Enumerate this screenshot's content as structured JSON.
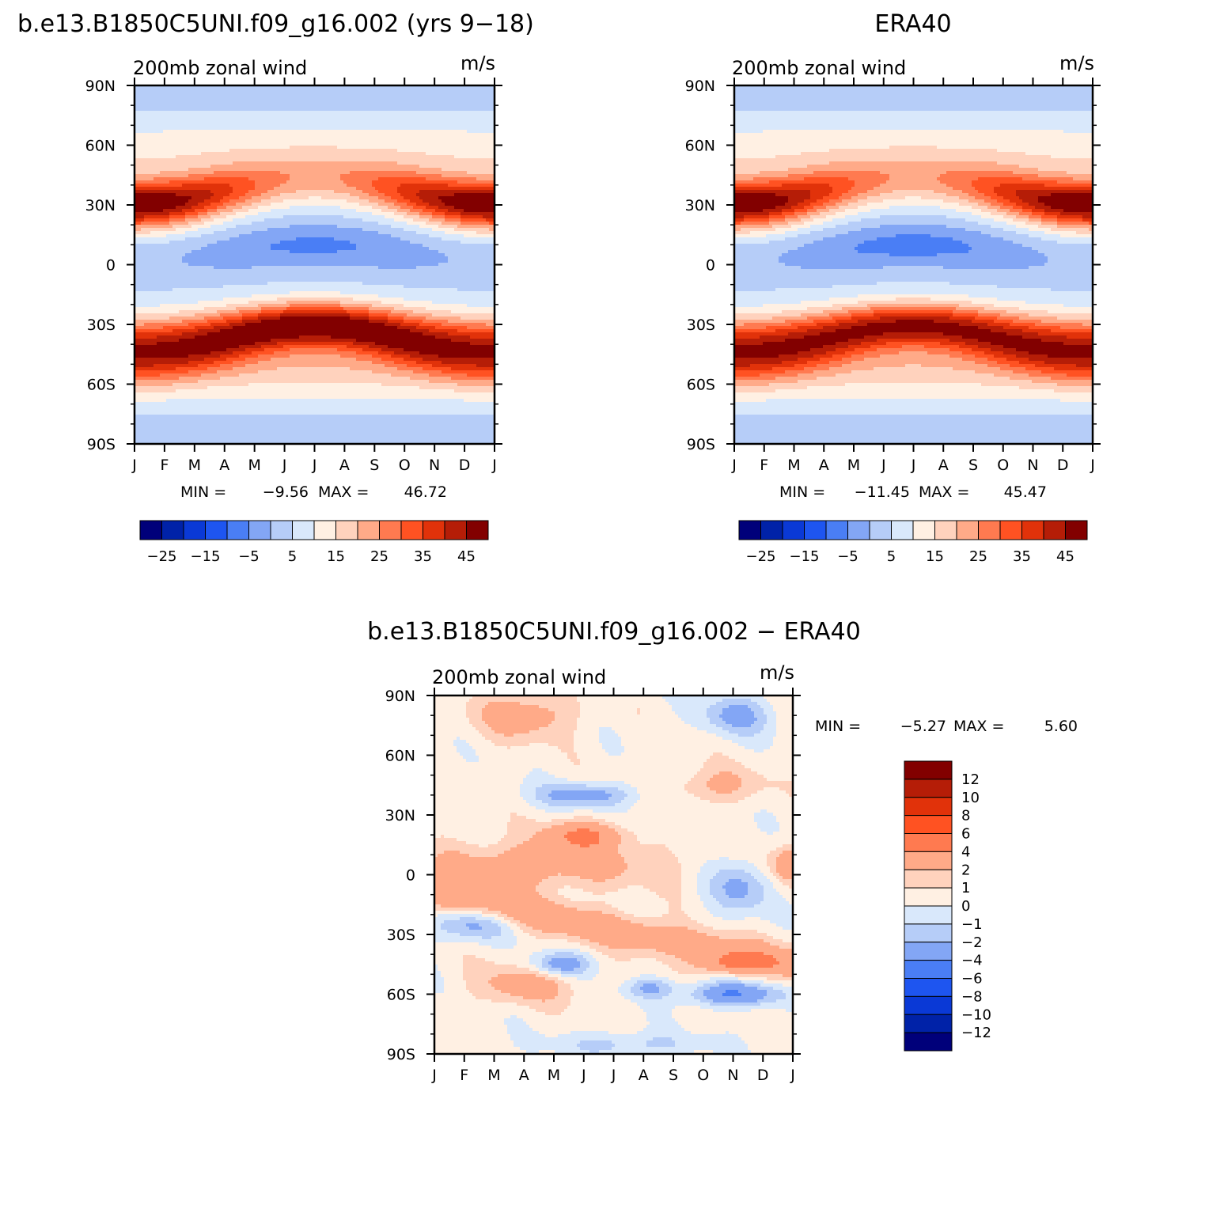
{
  "chart_data": [
    {
      "type": "heatmap",
      "title": "b.e13.B1850C5UNI.f09_g16.002 (yrs 9−18)",
      "subtitle": "200mb zonal wind",
      "units": "m/s",
      "x_ticks": [
        "J",
        "F",
        "M",
        "A",
        "M",
        "J",
        "J",
        "A",
        "S",
        "O",
        "N",
        "D",
        "J"
      ],
      "y_ticks": [
        "90N",
        "60N",
        "30N",
        "0",
        "30S",
        "60S",
        "90S"
      ],
      "y_range": [
        -90,
        90
      ],
      "min_label": "MIN =",
      "min_value": "−9.56",
      "max_label": "MAX =",
      "max_value": "46.72",
      "colorbar_labels": [
        "−25",
        "−15",
        "−5",
        "5",
        "15",
        "25",
        "35",
        "45"
      ],
      "colorbar_colors": [
        "#00007a",
        "#0022a8",
        "#0a39d6",
        "#1e55f0",
        "#4a7ef5",
        "#83a6f5",
        "#b6cdf8",
        "#d9e8fb",
        "#fff0e3",
        "#ffd2bd",
        "#ffaa88",
        "#ff7a50",
        "#ff5222",
        "#e1320a",
        "#b51d07",
        "#820000"
      ],
      "zonal_wind_profile": {
        "lat": [
          90,
          60,
          45,
          30,
          15,
          0,
          -15,
          -30,
          -45,
          -60,
          -90
        ],
        "jan": [
          -2,
          12,
          28,
          44,
          15,
          -5,
          2,
          20,
          33,
          18,
          0
        ],
        "jul": [
          1,
          10,
          14,
          12,
          -6,
          -9,
          16,
          46,
          30,
          14,
          -2
        ]
      }
    },
    {
      "type": "heatmap",
      "title": "ERA40",
      "subtitle": "200mb zonal wind",
      "units": "m/s",
      "x_ticks": [
        "J",
        "F",
        "M",
        "A",
        "M",
        "J",
        "J",
        "A",
        "S",
        "O",
        "N",
        "D",
        "J"
      ],
      "y_ticks": [
        "90N",
        "60N",
        "30N",
        "0",
        "30S",
        "60S",
        "90S"
      ],
      "y_range": [
        -90,
        90
      ],
      "min_label": "MIN =",
      "min_value": "−11.45",
      "max_label": "MAX =",
      "max_value": "45.47",
      "colorbar_labels": [
        "−25",
        "−15",
        "−5",
        "5",
        "15",
        "25",
        "35",
        "45"
      ],
      "colorbar_colors": [
        "#00007a",
        "#0022a8",
        "#0a39d6",
        "#1e55f0",
        "#4a7ef5",
        "#83a6f5",
        "#b6cdf8",
        "#d9e8fb",
        "#fff0e3",
        "#ffd2bd",
        "#ffaa88",
        "#ff7a50",
        "#ff5222",
        "#e1320a",
        "#b51d07",
        "#820000"
      ],
      "zonal_wind_profile": {
        "lat": [
          90,
          60,
          45,
          30,
          15,
          0,
          -15,
          -30,
          -45,
          -60,
          -90
        ],
        "jan": [
          -1,
          12,
          26,
          44,
          14,
          -6,
          1,
          20,
          30,
          16,
          -2
        ],
        "jul": [
          2,
          10,
          14,
          12,
          -8,
          -11,
          14,
          40,
          30,
          14,
          -2
        ]
      }
    },
    {
      "type": "heatmap",
      "title": "b.e13.B1850C5UNI.f09_g16.002 − ERA40",
      "subtitle": "200mb zonal wind",
      "units": "m/s",
      "x_ticks": [
        "J",
        "F",
        "M",
        "A",
        "M",
        "J",
        "J",
        "A",
        "S",
        "O",
        "N",
        "D",
        "J"
      ],
      "y_ticks": [
        "90N",
        "60N",
        "30N",
        "0",
        "30S",
        "60S",
        "90S"
      ],
      "y_range": [
        -90,
        90
      ],
      "min_label": "MIN =",
      "min_value": "−5.27",
      "max_label": "MAX =",
      "max_value": "5.60",
      "colorbar_labels": [
        "12",
        "10",
        "8",
        "6",
        "4",
        "2",
        "1",
        "0",
        "−1",
        "−2",
        "−4",
        "−6",
        "−8",
        "−10",
        "−12"
      ],
      "colorbar_colors": [
        "#820000",
        "#b51d07",
        "#e1320a",
        "#ff5222",
        "#ff7a50",
        "#ffaa88",
        "#ffd2bd",
        "#fff0e3",
        "#d9e8fb",
        "#b6cdf8",
        "#83a6f5",
        "#4a7ef5",
        "#1e55f0",
        "#0a39d6",
        "#0022a8",
        "#00007a"
      ]
    }
  ]
}
